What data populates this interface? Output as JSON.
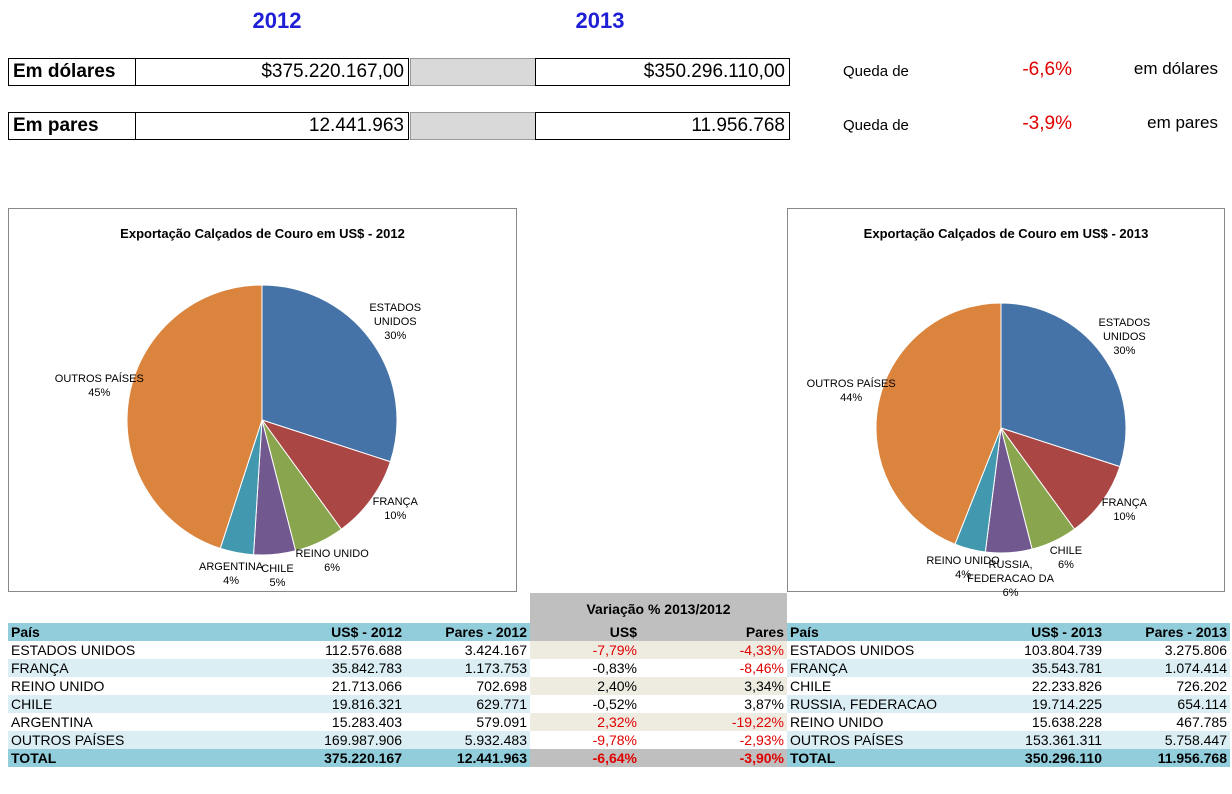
{
  "header": {
    "years": [
      "2012",
      "2013"
    ]
  },
  "summary": {
    "rows": [
      {
        "label": "Em dólares",
        "v2012": "$375.220.167,00",
        "v2013": "$350.296.110,00",
        "prefix": "Queda de",
        "change": "-6,6%",
        "suffix": "em dólares"
      },
      {
        "label": "Em pares",
        "v2012": "12.441.963",
        "v2013": "11.956.768",
        "prefix": "Queda de",
        "change": "-3,9%",
        "suffix": "em pares"
      }
    ]
  },
  "chart_data": [
    {
      "type": "pie",
      "title": "Exportação Calçados de Couro em US$ - 2012",
      "categories": [
        "ESTADOS UNIDOS",
        "FRANÇA",
        "REINO UNIDO",
        "CHILE",
        "ARGENTINA",
        "OUTROS PAÍSES"
      ],
      "values": [
        30,
        10,
        6,
        5,
        4,
        45
      ],
      "value_labels": [
        "30%",
        "10%",
        "6%",
        "5%",
        "4%",
        "45%"
      ],
      "colors": [
        "#4572a7",
        "#aa4643",
        "#89a54e",
        "#71588f",
        "#4198af",
        "#db843d"
      ]
    },
    {
      "type": "pie",
      "title": "Exportação Calçados de Couro em US$ - 2013",
      "categories": [
        "ESTADOS UNIDOS",
        "FRANÇA",
        "CHILE",
        "RUSSIA, FEDERACAO DA",
        "REINO UNIDO",
        "OUTROS PAÍSES"
      ],
      "values": [
        30,
        10,
        6,
        6,
        4,
        44
      ],
      "value_labels": [
        "30%",
        "10%",
        "6%",
        "6%",
        "4%",
        "44%"
      ],
      "colors": [
        "#4572a7",
        "#aa4643",
        "#89a54e",
        "#71588f",
        "#4198af",
        "#db843d"
      ]
    }
  ],
  "table": {
    "group_header": "Variação % 2013/2012",
    "headers": [
      "País",
      "US$ - 2012",
      "Pares - 2012",
      "US$",
      "Pares",
      "País",
      "US$ - 2013",
      "Pares - 2013"
    ],
    "rows": [
      [
        "ESTADOS UNIDOS",
        "112.576.688",
        "3.424.167",
        "-7,79%",
        "-4,33%",
        "ESTADOS UNIDOS",
        "103.804.739",
        "3.275.806"
      ],
      [
        "FRANÇA",
        "35.842.783",
        "1.173.753",
        "-0,83%",
        "-8,46%",
        "FRANÇA",
        "35.543.781",
        "1.074.414"
      ],
      [
        "REINO UNIDO",
        "21.713.066",
        "702.698",
        "2,40%",
        "3,34%",
        "CHILE",
        "22.233.826",
        "726.202"
      ],
      [
        "CHILE",
        "19.816.321",
        "629.771",
        "-0,52%",
        "3,87%",
        "RUSSIA, FEDERACAO",
        "19.714.225",
        "654.114"
      ],
      [
        "ARGENTINA",
        "15.283.403",
        "579.091",
        "2,32%",
        "-19,22%",
        "REINO UNIDO",
        "15.638.228",
        "467.785"
      ],
      [
        "OUTROS PAÍSES",
        "169.987.906",
        "5.932.483",
        "-9,78%",
        "-2,93%",
        "OUTROS PAÍSES",
        "153.361.311",
        "5.758.447"
      ],
      [
        "TOTAL",
        "375.220.167",
        "12.441.963",
        "-6,64%",
        "-3,90%",
        "TOTAL",
        "350.296.110",
        "11.956.768"
      ]
    ]
  }
}
